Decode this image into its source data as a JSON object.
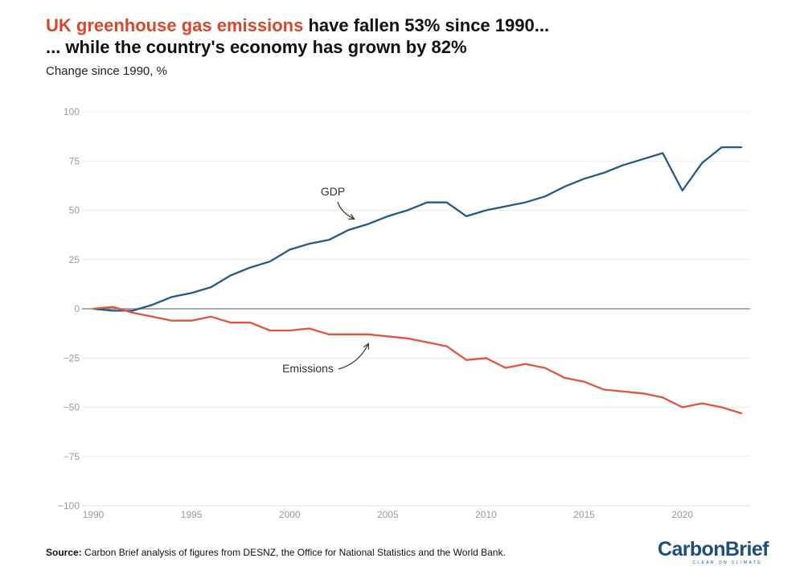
{
  "title": {
    "highlight": "UK greenhouse gas emissions",
    "rest": " have fallen 53% since 1990..."
  },
  "subtitle": "... while the country's economy has grown by 82%",
  "source": {
    "label": "Source:",
    "text": " Carbon Brief analysis of figures from DESNZ, the Office for National Statistics and the World Bank."
  },
  "logo": {
    "name": "CarbonBrief",
    "tagline": "CLEAR ON CLIMATE",
    "color": "#1c4e7e"
  },
  "chart_data": {
    "type": "line",
    "title": "UK greenhouse gas emissions have fallen 53% since 1990... while the country's economy has grown by 82%",
    "ylabel": "Change since 1990, %",
    "xlabel": "",
    "ylim": [
      -100,
      100
    ],
    "xlim": [
      1990,
      2023
    ],
    "yticks": [
      100,
      75,
      50,
      25,
      0,
      -25,
      -50,
      -75,
      -100
    ],
    "xticks": [
      1990,
      1995,
      2000,
      2005,
      2010,
      2015,
      2020
    ],
    "grid": true,
    "x": [
      1990,
      1991,
      1992,
      1993,
      1994,
      1995,
      1996,
      1997,
      1998,
      1999,
      2000,
      2001,
      2002,
      2003,
      2004,
      2005,
      2006,
      2007,
      2008,
      2009,
      2010,
      2011,
      2012,
      2013,
      2014,
      2015,
      2016,
      2017,
      2018,
      2019,
      2020,
      2021,
      2022,
      2023
    ],
    "series": [
      {
        "name": "GDP",
        "color": "#1f5a8a",
        "values": [
          0,
          -1,
          -1,
          2,
          6,
          8,
          11,
          17,
          21,
          24,
          30,
          33,
          35,
          40,
          43,
          47,
          50,
          54,
          54,
          47,
          50,
          52,
          54,
          57,
          62,
          66,
          69,
          73,
          76,
          79,
          60,
          74,
          82,
          82
        ]
      },
      {
        "name": "Emissions",
        "color": "#e0543e",
        "values": [
          0,
          1,
          -2,
          -4,
          -6,
          -6,
          -4,
          -7,
          -7,
          -11,
          -11,
          -10,
          -13,
          -13,
          -13,
          -14,
          -15,
          -17,
          -19,
          -26,
          -25,
          -30,
          -28,
          -30,
          -35,
          -37,
          -41,
          -42,
          -43,
          -45,
          -50,
          -48,
          -50,
          -53
        ]
      }
    ],
    "annotations": [
      {
        "text": "GDP",
        "series": "GDP"
      },
      {
        "text": "Emissions",
        "series": "Emissions"
      }
    ]
  }
}
